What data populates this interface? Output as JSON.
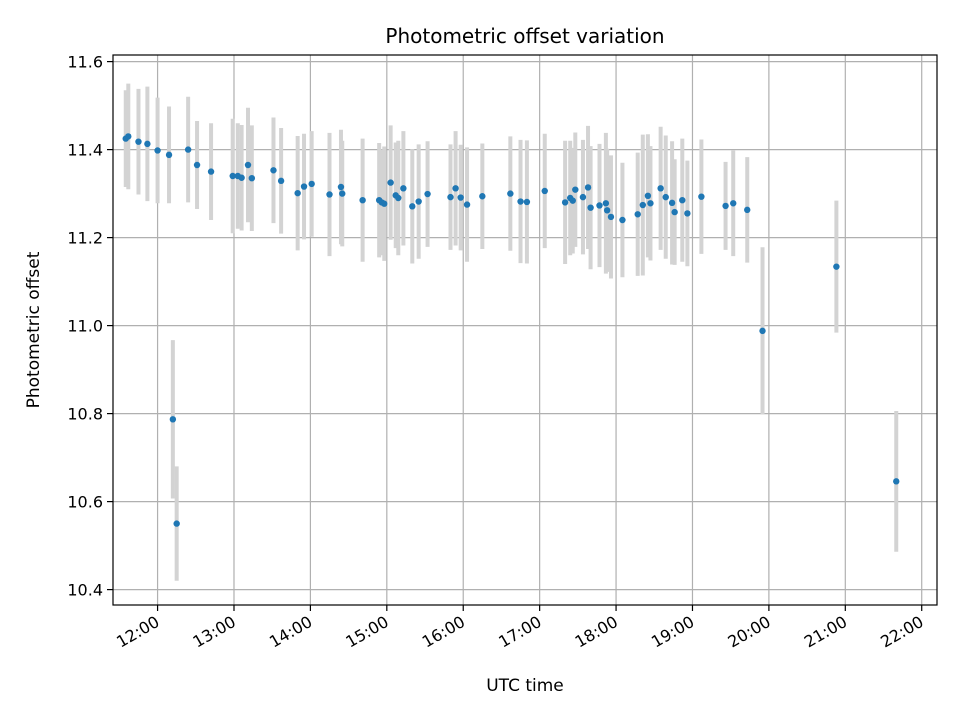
{
  "chart_data": {
    "type": "scatter",
    "title": "Photometric offset variation",
    "xlabel": "UTC time",
    "ylabel": "Photometric offset",
    "x_tick_labels": [
      "12:00",
      "13:00",
      "14:00",
      "15:00",
      "16:00",
      "17:00",
      "18:00",
      "19:00",
      "20:00",
      "21:00",
      "22:00"
    ],
    "y_ticks": [
      "10.4",
      "10.6",
      "10.8",
      "11.0",
      "11.2",
      "11.4",
      "11.6"
    ],
    "xlim": [
      "11:25",
      "22:12"
    ],
    "ylim": [
      10.365,
      11.615
    ],
    "grid": true,
    "point_color": "#1f77b4",
    "errorbar_color": "#d3d3d3",
    "series": [
      {
        "x": [
          "11:35",
          "11:37",
          "11:45",
          "11:52",
          "12:00",
          "12:09",
          "12:12",
          "12:15",
          "12:24",
          "12:31",
          "12:42",
          "12:59",
          "13:03",
          "13:06",
          "13:11",
          "13:14",
          "13:31",
          "13:37",
          "13:50",
          "13:55",
          "14:01",
          "14:15",
          "14:24",
          "14:25",
          "14:41",
          "14:54",
          "14:56",
          "14:58",
          "15:03",
          "15:07",
          "15:09",
          "15:13",
          "15:20",
          "15:25",
          "15:32",
          "15:50",
          "15:54",
          "15:58",
          "16:03",
          "16:15",
          "16:37",
          "16:45",
          "16:50",
          "17:04",
          "17:20",
          "17:24",
          "17:26",
          "17:28",
          "17:34",
          "17:38",
          "17:40",
          "17:47",
          "17:52",
          "17:53",
          "17:56",
          "18:05",
          "18:17",
          "18:21",
          "18:25",
          "18:27",
          "18:35",
          "18:39",
          "18:44",
          "18:46",
          "18:52",
          "18:56",
          "19:07",
          "19:26",
          "19:32",
          "19:43",
          "19:55",
          "20:53",
          "21:40"
        ],
        "y": [
          11.425,
          11.43,
          11.418,
          11.413,
          11.398,
          11.388,
          10.787,
          10.55,
          11.4,
          11.365,
          11.35,
          11.34,
          11.34,
          11.336,
          11.365,
          11.335,
          11.353,
          11.329,
          11.301,
          11.316,
          11.322,
          11.298,
          11.315,
          11.3,
          11.285,
          11.285,
          11.28,
          11.277,
          11.325,
          11.296,
          11.29,
          11.312,
          11.271,
          11.282,
          11.299,
          11.292,
          11.312,
          11.291,
          11.275,
          11.294,
          11.3,
          11.282,
          11.281,
          11.306,
          11.28,
          11.29,
          11.284,
          11.309,
          11.292,
          11.314,
          11.268,
          11.273,
          11.278,
          11.262,
          11.247,
          11.24,
          11.253,
          11.274,
          11.295,
          11.278,
          11.312,
          11.292,
          11.279,
          11.258,
          11.285,
          11.255,
          11.293,
          11.272,
          11.278,
          11.263,
          10.988,
          11.134,
          10.646
        ],
        "err": [
          0.11,
          0.12,
          0.12,
          0.13,
          0.12,
          0.11,
          0.18,
          0.13,
          0.12,
          0.1,
          0.11,
          0.13,
          0.12,
          0.12,
          0.13,
          0.12,
          0.12,
          0.12,
          0.13,
          0.12,
          0.12,
          0.14,
          0.13,
          0.12,
          0.14,
          0.13,
          0.12,
          0.13,
          0.13,
          0.12,
          0.13,
          0.13,
          0.13,
          0.13,
          0.12,
          0.12,
          0.13,
          0.12,
          0.13,
          0.12,
          0.13,
          0.14,
          0.14,
          0.13,
          0.14,
          0.13,
          0.12,
          0.13,
          0.13,
          0.14,
          0.14,
          0.14,
          0.16,
          0.14,
          0.14,
          0.13,
          0.14,
          0.16,
          0.14,
          0.13,
          0.14,
          0.14,
          0.14,
          0.12,
          0.14,
          0.12,
          0.13,
          0.1,
          0.12,
          0.12,
          0.19,
          0.15,
          0.16
        ]
      }
    ]
  }
}
